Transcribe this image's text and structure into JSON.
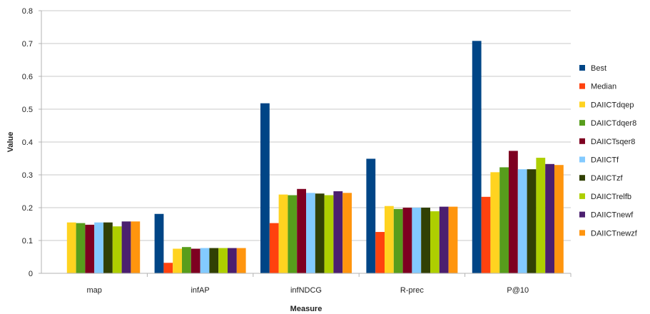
{
  "chart_data": {
    "type": "bar",
    "title": "",
    "xlabel": "Measure",
    "ylabel": "Value",
    "ylim": [
      0,
      0.8
    ],
    "yticks": [
      0,
      0.1,
      0.2,
      0.3,
      0.4,
      0.5,
      0.6,
      0.7,
      0.8
    ],
    "ytick_labels": [
      "0",
      "0.1",
      "0.2",
      "0.3",
      "0.4",
      "0.5",
      "0.6",
      "0.7",
      "0.8"
    ],
    "grid": "horizontal",
    "legend_position": "right",
    "categories": [
      "map",
      "infAP",
      "infNDCG",
      "R-prec",
      "P@10"
    ],
    "series": [
      {
        "name": "Best",
        "color": "#004586",
        "values": [
          null,
          0.181,
          0.518,
          0.349,
          0.708
        ]
      },
      {
        "name": "Median",
        "color": "#ff420e",
        "values": [
          null,
          0.032,
          0.153,
          0.126,
          0.233
        ]
      },
      {
        "name": "DAIICTdqep",
        "color": "#ffd320",
        "values": [
          0.155,
          0.075,
          0.24,
          0.205,
          0.308
        ]
      },
      {
        "name": "DAIICTdqer8",
        "color": "#579d1c",
        "values": [
          0.153,
          0.08,
          0.238,
          0.196,
          0.323
        ]
      },
      {
        "name": "DAIICTsqer8",
        "color": "#7e0021",
        "values": [
          0.148,
          0.075,
          0.257,
          0.2,
          0.373
        ]
      },
      {
        "name": "DAIICTf",
        "color": "#83caff",
        "values": [
          0.155,
          0.077,
          0.245,
          0.2,
          0.317
        ]
      },
      {
        "name": "DAIICTzf",
        "color": "#314004",
        "values": [
          0.155,
          0.077,
          0.243,
          0.2,
          0.317
        ]
      },
      {
        "name": "DAIICTrelfb",
        "color": "#aecf00",
        "values": [
          0.143,
          0.077,
          0.238,
          0.189,
          0.352
        ]
      },
      {
        "name": "DAIICTnewf",
        "color": "#4b1f6f",
        "values": [
          0.158,
          0.077,
          0.25,
          0.203,
          0.333
        ]
      },
      {
        "name": "DAIICTnewzf",
        "color": "#ff950e",
        "values": [
          0.158,
          0.077,
          0.245,
          0.203,
          0.33
        ]
      }
    ]
  }
}
